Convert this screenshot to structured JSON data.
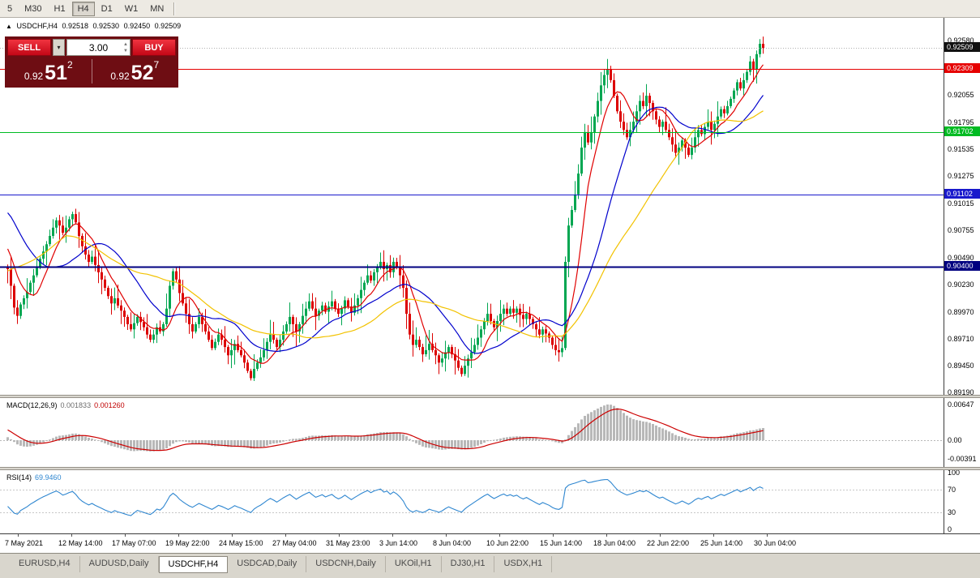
{
  "toolbar": {
    "buttons": [
      {
        "label": "5"
      },
      {
        "label": "M30"
      },
      {
        "label": "H1"
      },
      {
        "label": "H4",
        "active": true
      },
      {
        "label": "D1"
      },
      {
        "label": "W1"
      },
      {
        "label": "MN"
      }
    ]
  },
  "ohlc": {
    "icon": "▲",
    "symbol": "USDCHF,H4",
    "open": "0.92518",
    "high": "0.92530",
    "low": "0.92450",
    "close": "0.92509"
  },
  "trade_panel": {
    "sell_label": "SELL",
    "buy_label": "BUY",
    "volume": "3.00",
    "dropdown_icon": "▾",
    "bid": {
      "small": "0.92",
      "big": "51",
      "sup": "2"
    },
    "ask": {
      "small": "0.92",
      "big": "52",
      "sup": "7"
    }
  },
  "macd": {
    "title": "MACD(12,26,9)",
    "value1": "0.001833",
    "value2": "0.001260",
    "axis_labels": [
      "0.00647",
      "0.00",
      "-0.00391"
    ]
  },
  "rsi": {
    "title": "RSI(14)",
    "value": "69.9460",
    "axis_labels": [
      "100",
      "70",
      "30",
      "0"
    ]
  },
  "tabs": {
    "items": [
      "EURUSD,H4",
      "AUDUSD,Daily",
      "USDCHF,H4",
      "USDCAD,Daily",
      "USDCNH,Daily",
      "UKOil,H1",
      "DJ30,H1",
      "USDX,H1"
    ],
    "active": "USDCHF,H4"
  },
  "chart_data": {
    "type": "candlestick",
    "symbol": "USDCHF",
    "timeframe": "H4",
    "price_axis": {
      "min": 0.8917,
      "max": 0.928,
      "tick_labels": [
        "0.92580",
        "0.92055",
        "0.91795",
        "0.91535",
        "0.91275",
        "0.91015",
        "0.90755",
        "0.90490",
        "0.90230",
        "0.89970",
        "0.89710",
        "0.89450",
        "0.89190"
      ]
    },
    "time_labels": [
      "7 May 2021",
      "12 May 14:00",
      "17 May 07:00",
      "19 May 22:00",
      "24 May 15:00",
      "27 May 04:00",
      "31 May 23:00",
      "3 Jun 14:00",
      "8 Jun 04:00",
      "10 Jun 22:00",
      "15 Jun 14:00",
      "18 Jun 04:00",
      "22 Jun 22:00",
      "25 Jun 14:00",
      "30 Jun 04:00"
    ],
    "up_color": "#00a651",
    "down_color": "#dc0000",
    "warmup_closes": [
      0.8945,
      0.895,
      0.8955,
      0.8952,
      0.8958,
      0.8962,
      0.896,
      0.8965,
      0.8968,
      0.8964,
      0.897,
      0.8972,
      0.8968,
      0.8974,
      0.8976,
      0.8972,
      0.8978,
      0.8982,
      0.8985,
      0.9095,
      0.9105,
      0.9115,
      0.912,
      0.9125,
      0.9128,
      0.9125,
      0.912,
      0.9118,
      0.9115,
      0.9112,
      0.911,
      0.91,
      0.9085,
      0.908,
      0.9075,
      0.907,
      0.906,
      0.9052,
      0.9045,
      0.904
    ],
    "closes": [
      0.9038,
      0.9022,
      0.9001,
      0.8993,
      0.9004,
      0.901,
      0.9016,
      0.9025,
      0.9032,
      0.904,
      0.9048,
      0.9055,
      0.9062,
      0.907,
      0.9078,
      0.9085,
      0.908,
      0.9073,
      0.9078,
      0.9086,
      0.9091,
      0.9083,
      0.907,
      0.906,
      0.9052,
      0.9045,
      0.905,
      0.9042,
      0.9035,
      0.9028,
      0.902,
      0.9012,
      0.9005,
      0.901,
      0.9003,
      0.8998,
      0.8992,
      0.8985,
      0.898,
      0.8986,
      0.8992,
      0.8987,
      0.8982,
      0.8975,
      0.897,
      0.8975,
      0.8982,
      0.8978,
      0.8985,
      0.9,
      0.9022,
      0.9036,
      0.9028,
      0.9015,
      0.9005,
      0.8995,
      0.8985,
      0.8978,
      0.8985,
      0.8992,
      0.8985,
      0.8978,
      0.897,
      0.8962,
      0.8968,
      0.8975,
      0.897,
      0.8963,
      0.8955,
      0.896,
      0.8966,
      0.896,
      0.8955,
      0.8948,
      0.894,
      0.8933,
      0.8942,
      0.8948,
      0.8953,
      0.896,
      0.8968,
      0.8975,
      0.897,
      0.8963,
      0.897,
      0.8978,
      0.8985,
      0.8992,
      0.8985,
      0.8978,
      0.8985,
      0.8993,
      0.9,
      0.9007,
      0.9,
      0.8993,
      0.8998,
      0.9003,
      0.8997,
      0.9002,
      0.9007,
      0.9,
      0.8995,
      0.9,
      0.9008,
      0.9002,
      0.8996,
      0.9003,
      0.901,
      0.9018,
      0.9025,
      0.9032,
      0.9027,
      0.9035,
      0.904,
      0.9045,
      0.9038,
      0.9042,
      0.9035,
      0.9045,
      0.904,
      0.9032,
      0.902,
      0.8995,
      0.8975,
      0.8965,
      0.897,
      0.8963,
      0.8956,
      0.896,
      0.8966,
      0.896,
      0.8955,
      0.8948,
      0.8952,
      0.8958,
      0.8963,
      0.8956,
      0.895,
      0.8943,
      0.8937,
      0.8945,
      0.8952,
      0.8958,
      0.8965,
      0.8972,
      0.898,
      0.8988,
      0.8995,
      0.8988,
      0.8982,
      0.8988,
      0.8995,
      0.9,
      0.8995,
      0.9,
      0.8996,
      0.9,
      0.8994,
      0.899,
      0.8995,
      0.899,
      0.8985,
      0.898,
      0.8975,
      0.898,
      0.8976,
      0.8972,
      0.8965,
      0.896,
      0.8958,
      0.8962,
      0.9045,
      0.908,
      0.9095,
      0.911,
      0.913,
      0.9155,
      0.917,
      0.916,
      0.917,
      0.9185,
      0.92,
      0.9215,
      0.9225,
      0.923,
      0.922,
      0.9205,
      0.919,
      0.918,
      0.9172,
      0.9165,
      0.9172,
      0.918,
      0.919,
      0.92,
      0.9195,
      0.9205,
      0.9198,
      0.919,
      0.9182,
      0.9175,
      0.918,
      0.9172,
      0.9165,
      0.9158,
      0.915,
      0.9155,
      0.9162,
      0.9155,
      0.9148,
      0.9155,
      0.9165,
      0.9172,
      0.9168,
      0.9175,
      0.918,
      0.9172,
      0.9178,
      0.9185,
      0.9192,
      0.9188,
      0.9195,
      0.9202,
      0.921,
      0.9218,
      0.9212,
      0.922,
      0.9228,
      0.9238,
      0.923,
      0.9245,
      0.9255,
      0.9251
    ],
    "moving_averages": [
      {
        "period": 8,
        "type": "sma",
        "color": "#e00000"
      },
      {
        "period": 21,
        "type": "sma",
        "color": "#0000cc"
      },
      {
        "period": 40,
        "type": "sma",
        "color": "#f2c200"
      }
    ],
    "levels": [
      {
        "label": "0.92509",
        "price": 0.92509,
        "color": "#111111",
        "line_color": "#b0b0b0",
        "style": "dotted",
        "width": 1,
        "name": "last-price"
      },
      {
        "label": "0.92309",
        "price": 0.92309,
        "color": "#e60000",
        "style": "solid",
        "width": 1,
        "name": "resistance-line-red"
      },
      {
        "label": "0.91702",
        "price": 0.91702,
        "color": "#00bb22",
        "style": "solid",
        "width": 1,
        "name": "support-line-green"
      },
      {
        "label": "0.91102",
        "price": 0.91102,
        "color": "#1919cc",
        "style": "solid",
        "width": 1,
        "name": "support-line-blue"
      },
      {
        "label": "0.90400",
        "price": 0.904,
        "color": "#000080",
        "style": "solid",
        "width": 2,
        "name": "support-line-navy"
      }
    ],
    "macd": {
      "fast": 12,
      "slow": 26,
      "signal": 9,
      "histogram_color": "#b8b8b8",
      "signal_color": "#cc0000"
    },
    "rsi": {
      "period": 14,
      "color": "#2e86d0",
      "levels": [
        70,
        30
      ]
    }
  }
}
